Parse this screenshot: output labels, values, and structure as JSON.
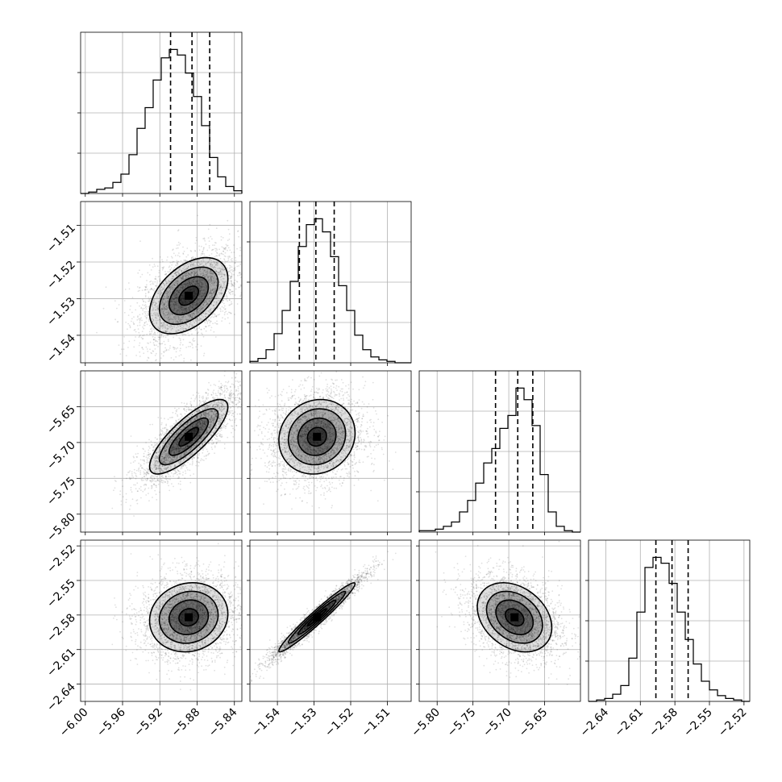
{
  "chart_data": {
    "type": "corner",
    "grid": true,
    "parameters": [
      {
        "range": [
          -6.005,
          -5.832
        ],
        "mean": -5.889,
        "sd": 0.021,
        "quantiles": [
          -5.9085,
          -5.8855,
          -5.8665
        ],
        "ticks": [
          "−6.00",
          "−5.96",
          "−5.92",
          "−5.88",
          "−5.84"
        ],
        "tick_values": [
          -6.0,
          -5.96,
          -5.92,
          -5.88,
          -5.84
        ],
        "histogram": [
          0,
          1,
          3,
          4,
          8,
          14,
          28,
          47,
          62,
          82,
          98,
          104,
          100,
          87,
          70,
          49,
          26,
          12,
          5,
          2
        ]
      },
      {
        "range": [
          -1.5475,
          -1.5035
        ],
        "mean": -1.5292,
        "sd": 0.0052,
        "quantiles": [
          -1.534,
          -1.5295,
          -1.5245
        ],
        "ticks": [
          "−1.54",
          "−1.53",
          "−1.52",
          "−1.51"
        ],
        "tick_values": [
          -1.54,
          -1.53,
          -1.52,
          -1.51
        ],
        "histogram": [
          1,
          3,
          9,
          20,
          36,
          56,
          80,
          95,
          99,
          90,
          73,
          53,
          36,
          19,
          9,
          4,
          2,
          1,
          0,
          0
        ]
      },
      {
        "range": [
          -5.825,
          -5.6
        ],
        "mean": -5.692,
        "sd": 0.026,
        "quantiles": [
          -5.7185,
          -5.6875,
          -5.6665
        ],
        "ticks": [
          "−5.80",
          "−5.75",
          "−5.70",
          "−5.65"
        ],
        "tick_values": [
          -5.8,
          -5.75,
          -5.7,
          -5.65
        ],
        "histogram": [
          1,
          1,
          2,
          4,
          7,
          14,
          22,
          34,
          48,
          58,
          72,
          81,
          100,
          92,
          74,
          40,
          14,
          4,
          1,
          0
        ]
      },
      {
        "range": [
          -2.655,
          -2.515
        ],
        "mean": -2.582,
        "sd": 0.015,
        "quantiles": [
          -2.5965,
          -2.5825,
          -2.5685
        ],
        "ticks": [
          "−2.64",
          "−2.61",
          "−2.58",
          "−2.55",
          "−2.52"
        ],
        "tick_values": [
          -2.64,
          -2.61,
          -2.58,
          -2.55,
          -2.52
        ],
        "histogram": [
          0,
          1,
          2,
          5,
          11,
          30,
          62,
          93,
          100,
          96,
          82,
          62,
          43,
          26,
          14,
          8,
          4,
          2,
          1,
          0
        ]
      }
    ],
    "correlations": [
      [
        1,
        0.45,
        0.8,
        0.1
      ],
      [
        0.45,
        1,
        0.1,
        0.97
      ],
      [
        0.8,
        0.1,
        1,
        -0.3
      ],
      [
        0.1,
        0.97,
        -0.3,
        1
      ]
    ],
    "contour_levels_sigma": [
      0.5,
      1.0,
      1.5,
      2.0
    ],
    "sample_points": 3000
  },
  "colors": {
    "line": "#000000",
    "grid": "#b0b0b0",
    "background": "#ffffff"
  }
}
